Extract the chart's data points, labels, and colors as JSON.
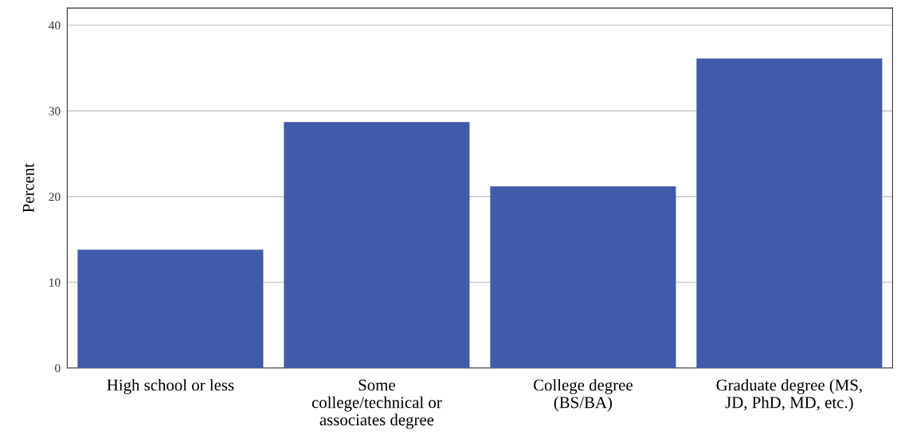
{
  "chart_data": {
    "type": "bar",
    "ylabel": "Percent",
    "categories": [
      "High school or less",
      "Some college/technical or associates degree",
      "College degree (BS/BA)",
      "Graduate degree (MS, JD, PhD, MD, etc.)"
    ],
    "values": [
      13.8,
      28.7,
      21.2,
      36.1
    ],
    "color": "#3f5aa8",
    "ylim": [
      0,
      42
    ],
    "yticks": [
      0,
      10,
      20,
      30,
      40
    ],
    "grid": "y"
  }
}
